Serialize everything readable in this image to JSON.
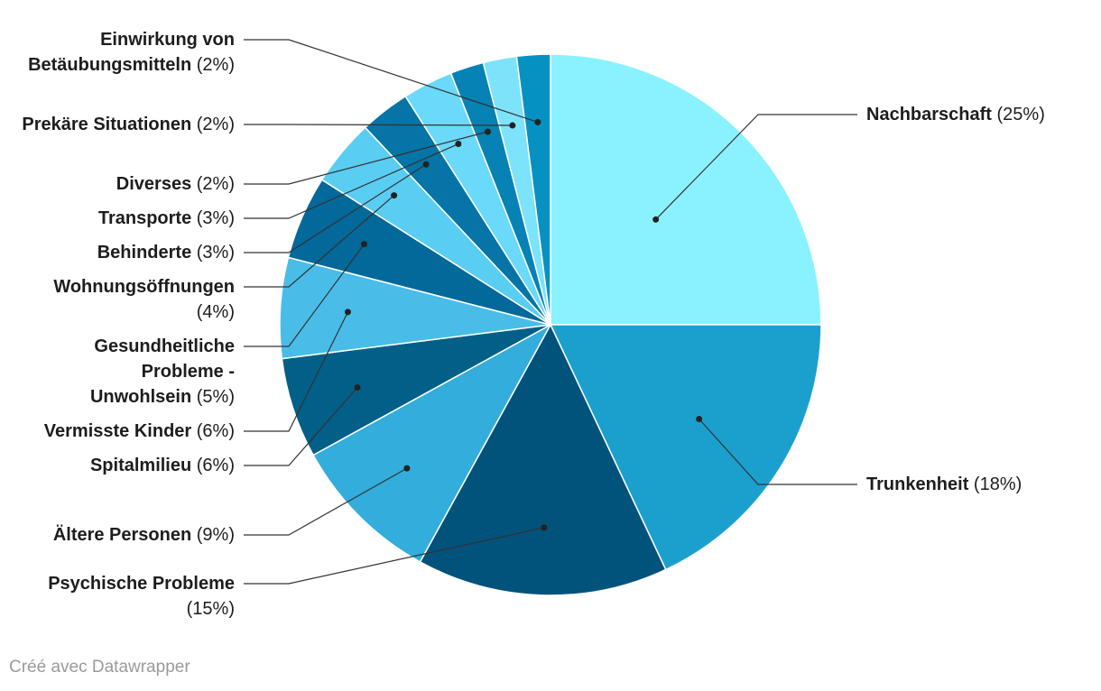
{
  "chart_data": {
    "type": "pie",
    "title": "",
    "slices": [
      {
        "label": "Nachbarschaft",
        "value": 25,
        "pct_text": "(25%)",
        "color": "#8af2ff"
      },
      {
        "label": "Trunkenheit",
        "value": 18,
        "pct_text": "(18%)",
        "color": "#1ba0ce"
      },
      {
        "label": "Psychische Probleme",
        "value": 15,
        "pct_text": "(15%)",
        "color": "#02537b"
      },
      {
        "label": "Ältere Personen",
        "value": 9,
        "pct_text": "(9%)",
        "color": "#33addb"
      },
      {
        "label": "Spitalmilieu",
        "value": 6,
        "pct_text": "(6%)",
        "color": "#025f88"
      },
      {
        "label": "Vermisste Kinder",
        "value": 6,
        "pct_text": "(6%)",
        "color": "#49bde8"
      },
      {
        "label": "Gesundheitliche Probleme - Unwohlsein",
        "value": 5,
        "pct_text": "(5%)",
        "color": "#03689a"
      },
      {
        "label": "Wohnungsöffnungen",
        "value": 4,
        "pct_text": "(4%)",
        "color": "#5acdf2"
      },
      {
        "label": "Behinderte",
        "value": 3,
        "pct_text": "(3%)",
        "color": "#0674a6"
      },
      {
        "label": "Transporte",
        "value": 3,
        "pct_text": "(3%)",
        "color": "#6ad9fa"
      },
      {
        "label": "Diverses",
        "value": 2,
        "pct_text": "(2%)",
        "color": "#0682b5"
      },
      {
        "label": "Prekäre Situationen",
        "value": 2,
        "pct_text": "(2%)",
        "color": "#7de3fb"
      },
      {
        "label": "Einwirkung von Betäubungsmitteln",
        "value": 2,
        "pct_text": "(2%)",
        "color": "#0591c2"
      }
    ]
  },
  "footer": "Créé avec Datawrapper"
}
